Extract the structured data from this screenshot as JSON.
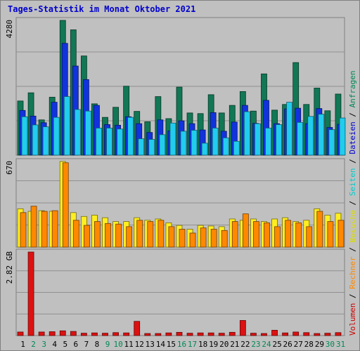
{
  "title": "Tages-Statistik im Monat Oktober 2021",
  "chart_data": {
    "type": "bar",
    "categories": [
      "1",
      "2",
      "3",
      "4",
      "5",
      "6",
      "7",
      "8",
      "9",
      "10",
      "11",
      "12",
      "13",
      "14",
      "15",
      "16",
      "17",
      "18",
      "19",
      "20",
      "21",
      "22",
      "23",
      "24",
      "25",
      "26",
      "27",
      "28",
      "29",
      "30",
      "31"
    ],
    "weekend_days": [
      "2",
      "3",
      "9",
      "10",
      "16",
      "17",
      "23",
      "24",
      "30",
      "31"
    ],
    "right_legend": [
      {
        "label": "Volumen",
        "color": "#cc0000"
      },
      {
        "label": "Rechner",
        "color": "#ff8800"
      },
      {
        "label": "Besuche",
        "color": "#dddd00"
      },
      {
        "label": "Seiten",
        "color": "#00cccc"
      },
      {
        "label": "Dateien",
        "color": "#0000cc"
      },
      {
        "label": "Anfragen",
        "color": "#008855"
      }
    ],
    "separator": "/",
    "panels": [
      {
        "ymax_label": "4280",
        "ymax": 4280,
        "series": [
          {
            "name": "Anfragen",
            "color": "#117755",
            "values": [
              1720,
              1980,
              1120,
              1840,
              4280,
              3980,
              3150,
              1630,
              1200,
              1520,
              2190,
              1390,
              1060,
              1860,
              1160,
              2160,
              1340,
              1320,
              1920,
              1340,
              1580,
              2020,
              1400,
              2580,
              1430,
              1610,
              2940,
              1610,
              2130,
              1410,
              1940
            ]
          },
          {
            "name": "Dateien",
            "color": "#1133dd",
            "values": [
              1420,
              1240,
              1030,
              1680,
              3550,
              2830,
              2400,
              1580,
              970,
              950,
              1220,
              1000,
              720,
              1120,
              770,
              1090,
              1000,
              800,
              1350,
              760,
              1050,
              1580,
              1010,
              1740,
              1000,
              1470,
              1490,
              1000,
              1480,
              880,
              980
            ]
          },
          {
            "name": "Seiten",
            "color": "#22ccee",
            "values": [
              1220,
              960,
              900,
              1200,
              1860,
              1450,
              1400,
              860,
              860,
              830,
              1200,
              520,
              500,
              650,
              1020,
              760,
              790,
              380,
              860,
              550,
              440,
              1380,
              1000,
              860,
              970,
              1680,
              1040,
              1230,
              1300,
              810,
              1180
            ]
          }
        ]
      },
      {
        "ymax_label": "670",
        "ymax": 670,
        "series": [
          {
            "name": "Besuche",
            "color": "#ffee22",
            "values": [
              300,
              280,
              285,
              280,
              670,
              270,
              240,
              250,
              230,
              200,
              200,
              230,
              210,
              220,
              190,
              170,
              140,
              170,
              165,
              160,
              220,
              210,
              220,
              200,
              220,
              230,
              200,
              210,
              300,
              250,
              265
            ]
          },
          {
            "name": "Rechner",
            "color": "#ff8800",
            "values": [
              270,
              320,
              280,
              285,
              660,
              210,
              170,
              200,
              185,
              180,
              160,
              210,
              200,
              210,
              160,
              140,
              110,
              150,
              140,
              130,
              200,
              260,
              200,
              190,
              160,
              210,
              190,
              160,
              280,
              200,
              210
            ]
          }
        ]
      },
      {
        "ymax_label": "2.82 GB",
        "ymax": 2.82,
        "series": [
          {
            "name": "Volumen",
            "color": "#dd1111",
            "values": [
              0.12,
              2.82,
              0.12,
              0.13,
              0.16,
              0.14,
              0.08,
              0.09,
              0.08,
              0.1,
              0.09,
              0.48,
              0.07,
              0.07,
              0.09,
              0.11,
              0.08,
              0.09,
              0.09,
              0.08,
              0.11,
              0.51,
              0.08,
              0.07,
              0.18,
              0.09,
              0.12,
              0.1,
              0.07,
              0.08,
              0.1
            ]
          }
        ]
      }
    ]
  }
}
